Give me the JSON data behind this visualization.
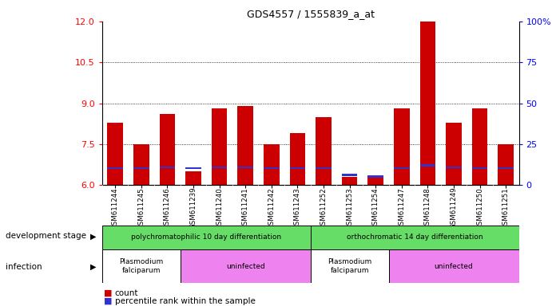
{
  "title": "GDS4557 / 1555839_a_at",
  "samples": [
    "GSM611244",
    "GSM611245",
    "GSM611246",
    "GSM611239",
    "GSM611240",
    "GSM611241",
    "GSM611242",
    "GSM611243",
    "GSM611252",
    "GSM611253",
    "GSM611254",
    "GSM611247",
    "GSM611248",
    "GSM611249",
    "GSM611250",
    "GSM611251"
  ],
  "count_values": [
    8.3,
    7.5,
    8.6,
    6.5,
    8.8,
    8.9,
    7.5,
    7.9,
    8.5,
    6.3,
    6.3,
    8.8,
    12.0,
    8.3,
    8.8,
    7.5
  ],
  "blue_bar_centers": [
    6.62,
    6.62,
    6.65,
    6.62,
    6.65,
    6.65,
    6.62,
    6.62,
    6.62,
    6.38,
    6.32,
    6.62,
    6.72,
    6.65,
    6.62,
    6.62
  ],
  "ylim_left": [
    6,
    12
  ],
  "ylim_right": [
    0,
    100
  ],
  "yticks_left": [
    6,
    7.5,
    9,
    10.5,
    12
  ],
  "yticks_right": [
    0,
    25,
    50,
    75,
    100
  ],
  "bar_color_red": "#cc0000",
  "bar_color_blue": "#3333cc",
  "bar_width": 0.6,
  "plot_bg": "#ffffff",
  "grid_lines": [
    7.5,
    9,
    10.5
  ],
  "dev_stage_groups": [
    {
      "label": "polychromatophilic 10 day differentiation",
      "start": 0,
      "end": 8,
      "color": "#66dd66"
    },
    {
      "label": "orthochromatic 14 day differentiation",
      "start": 8,
      "end": 16,
      "color": "#66dd66"
    }
  ],
  "infection_groups": [
    {
      "label": "Plasmodium\nfalciparum",
      "start": 0,
      "end": 3,
      "color": "#ffffff"
    },
    {
      "label": "uninfected",
      "start": 3,
      "end": 8,
      "color": "#ee82ee"
    },
    {
      "label": "Plasmodium\nfalciparum",
      "start": 8,
      "end": 11,
      "color": "#ffffff"
    },
    {
      "label": "uninfected",
      "start": 11,
      "end": 16,
      "color": "#ee82ee"
    }
  ],
  "legend_count_label": "count",
  "legend_percentile_label": "percentile rank within the sample",
  "dev_stage_label": "development stage",
  "infection_label": "infection",
  "xticklabel_bg": "#d8d8d8"
}
